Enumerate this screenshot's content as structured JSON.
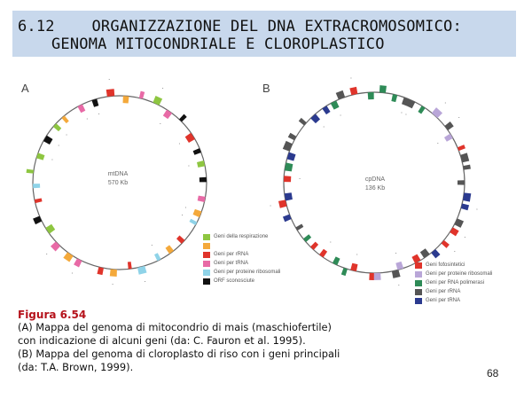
{
  "header": {
    "line1": "6.12    ORGANIZZAZIONE DEL DNA EXTRACROMOSOMICO:",
    "line2": "GENOMA MITOCONDRIALE E CLOROPLASTICO"
  },
  "panel_a": {
    "letter": "A",
    "center_name": "mtDNA",
    "center_size": "570 Kb",
    "legend": [
      {
        "label": "Geni della respirazione",
        "color": "#8ec641"
      },
      {
        "label": "",
        "color": "#f4a93b"
      },
      {
        "label": "Geni per rRNA",
        "color": "#e0342b"
      },
      {
        "label": "Geni per tRNA",
        "color": "#e86aa6"
      },
      {
        "label": "Geni per proteine ribosomali",
        "color": "#8fd3e8"
      },
      {
        "label": "ORF sconosciute",
        "color": "#111111"
      }
    ]
  },
  "panel_b": {
    "letter": "B",
    "center_name": "cpDNA",
    "center_size": "136 Kb",
    "legend": [
      {
        "label": "Geni fotosintetici",
        "color": "#e0342b"
      },
      {
        "label": "Geni per proteine ribosomali",
        "color": "#b9a6d8"
      },
      {
        "label": "Geni per RNA polimerasi",
        "color": "#2e8b57"
      },
      {
        "label": "Geni per rRNA",
        "color": "#555555"
      },
      {
        "label": "Geni per tRNA",
        "color": "#2b3a8f"
      }
    ]
  },
  "caption": {
    "title": "Figura  6.54",
    "lines": [
      "(A) Mappa del genoma di mitocondrio di mais (maschiofertile)",
      "con indicazione di alcuni geni (da: C. Fauron et al. 1995).",
      "(B) Mappa del genoma di cloroplasto di riso con i geni principali",
      "(da: T.A. Brown, 1999)."
    ]
  },
  "page_number": "68"
}
